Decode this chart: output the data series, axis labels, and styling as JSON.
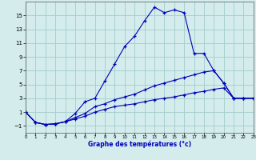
{
  "background_color": "#d4ecec",
  "grid_color": "#a8d0d0",
  "line_color": "#0000bb",
  "xlim": [
    0,
    23
  ],
  "ylim": [
    -2,
    17
  ],
  "xticks": [
    0,
    1,
    2,
    3,
    4,
    5,
    6,
    7,
    8,
    9,
    10,
    11,
    12,
    13,
    14,
    15,
    16,
    17,
    18,
    19,
    20,
    21,
    22,
    23
  ],
  "yticks": [
    -1,
    1,
    3,
    5,
    7,
    9,
    11,
    13,
    15
  ],
  "xlabel": "Graphe des températures (°c)",
  "series1_x": [
    0,
    1,
    2,
    3,
    4,
    5,
    6,
    7,
    8,
    9,
    10,
    11,
    12,
    13,
    14,
    15,
    16,
    17,
    18,
    19,
    20,
    21,
    22,
    23
  ],
  "series1_y": [
    1.0,
    -0.5,
    -0.8,
    -0.7,
    -0.4,
    0.8,
    2.5,
    3.0,
    5.5,
    8.0,
    10.5,
    12.0,
    14.2,
    16.2,
    15.4,
    15.8,
    15.4,
    9.5,
    9.5,
    7.0,
    5.2,
    3.0,
    3.0,
    3.0
  ],
  "series2_x": [
    0,
    1,
    2,
    3,
    4,
    5,
    6,
    7,
    8,
    9,
    10,
    11,
    12,
    13,
    14,
    15,
    16,
    17,
    18,
    19,
    20,
    21,
    22,
    23
  ],
  "series2_y": [
    1.0,
    -0.5,
    -0.8,
    -0.7,
    -0.4,
    0.2,
    0.8,
    1.8,
    2.2,
    2.8,
    3.2,
    3.6,
    4.2,
    4.8,
    5.2,
    5.6,
    6.0,
    6.4,
    6.8,
    7.0,
    5.2,
    3.0,
    3.0,
    3.0
  ],
  "series3_x": [
    0,
    1,
    2,
    3,
    4,
    5,
    6,
    7,
    8,
    9,
    10,
    11,
    12,
    13,
    14,
    15,
    16,
    17,
    18,
    19,
    20,
    21,
    22,
    23
  ],
  "series3_y": [
    1.0,
    -0.5,
    -0.8,
    -0.7,
    -0.4,
    0.0,
    0.4,
    1.0,
    1.4,
    1.8,
    2.0,
    2.2,
    2.5,
    2.8,
    3.0,
    3.2,
    3.5,
    3.8,
    4.0,
    4.3,
    4.5,
    3.0,
    3.0,
    3.0
  ]
}
